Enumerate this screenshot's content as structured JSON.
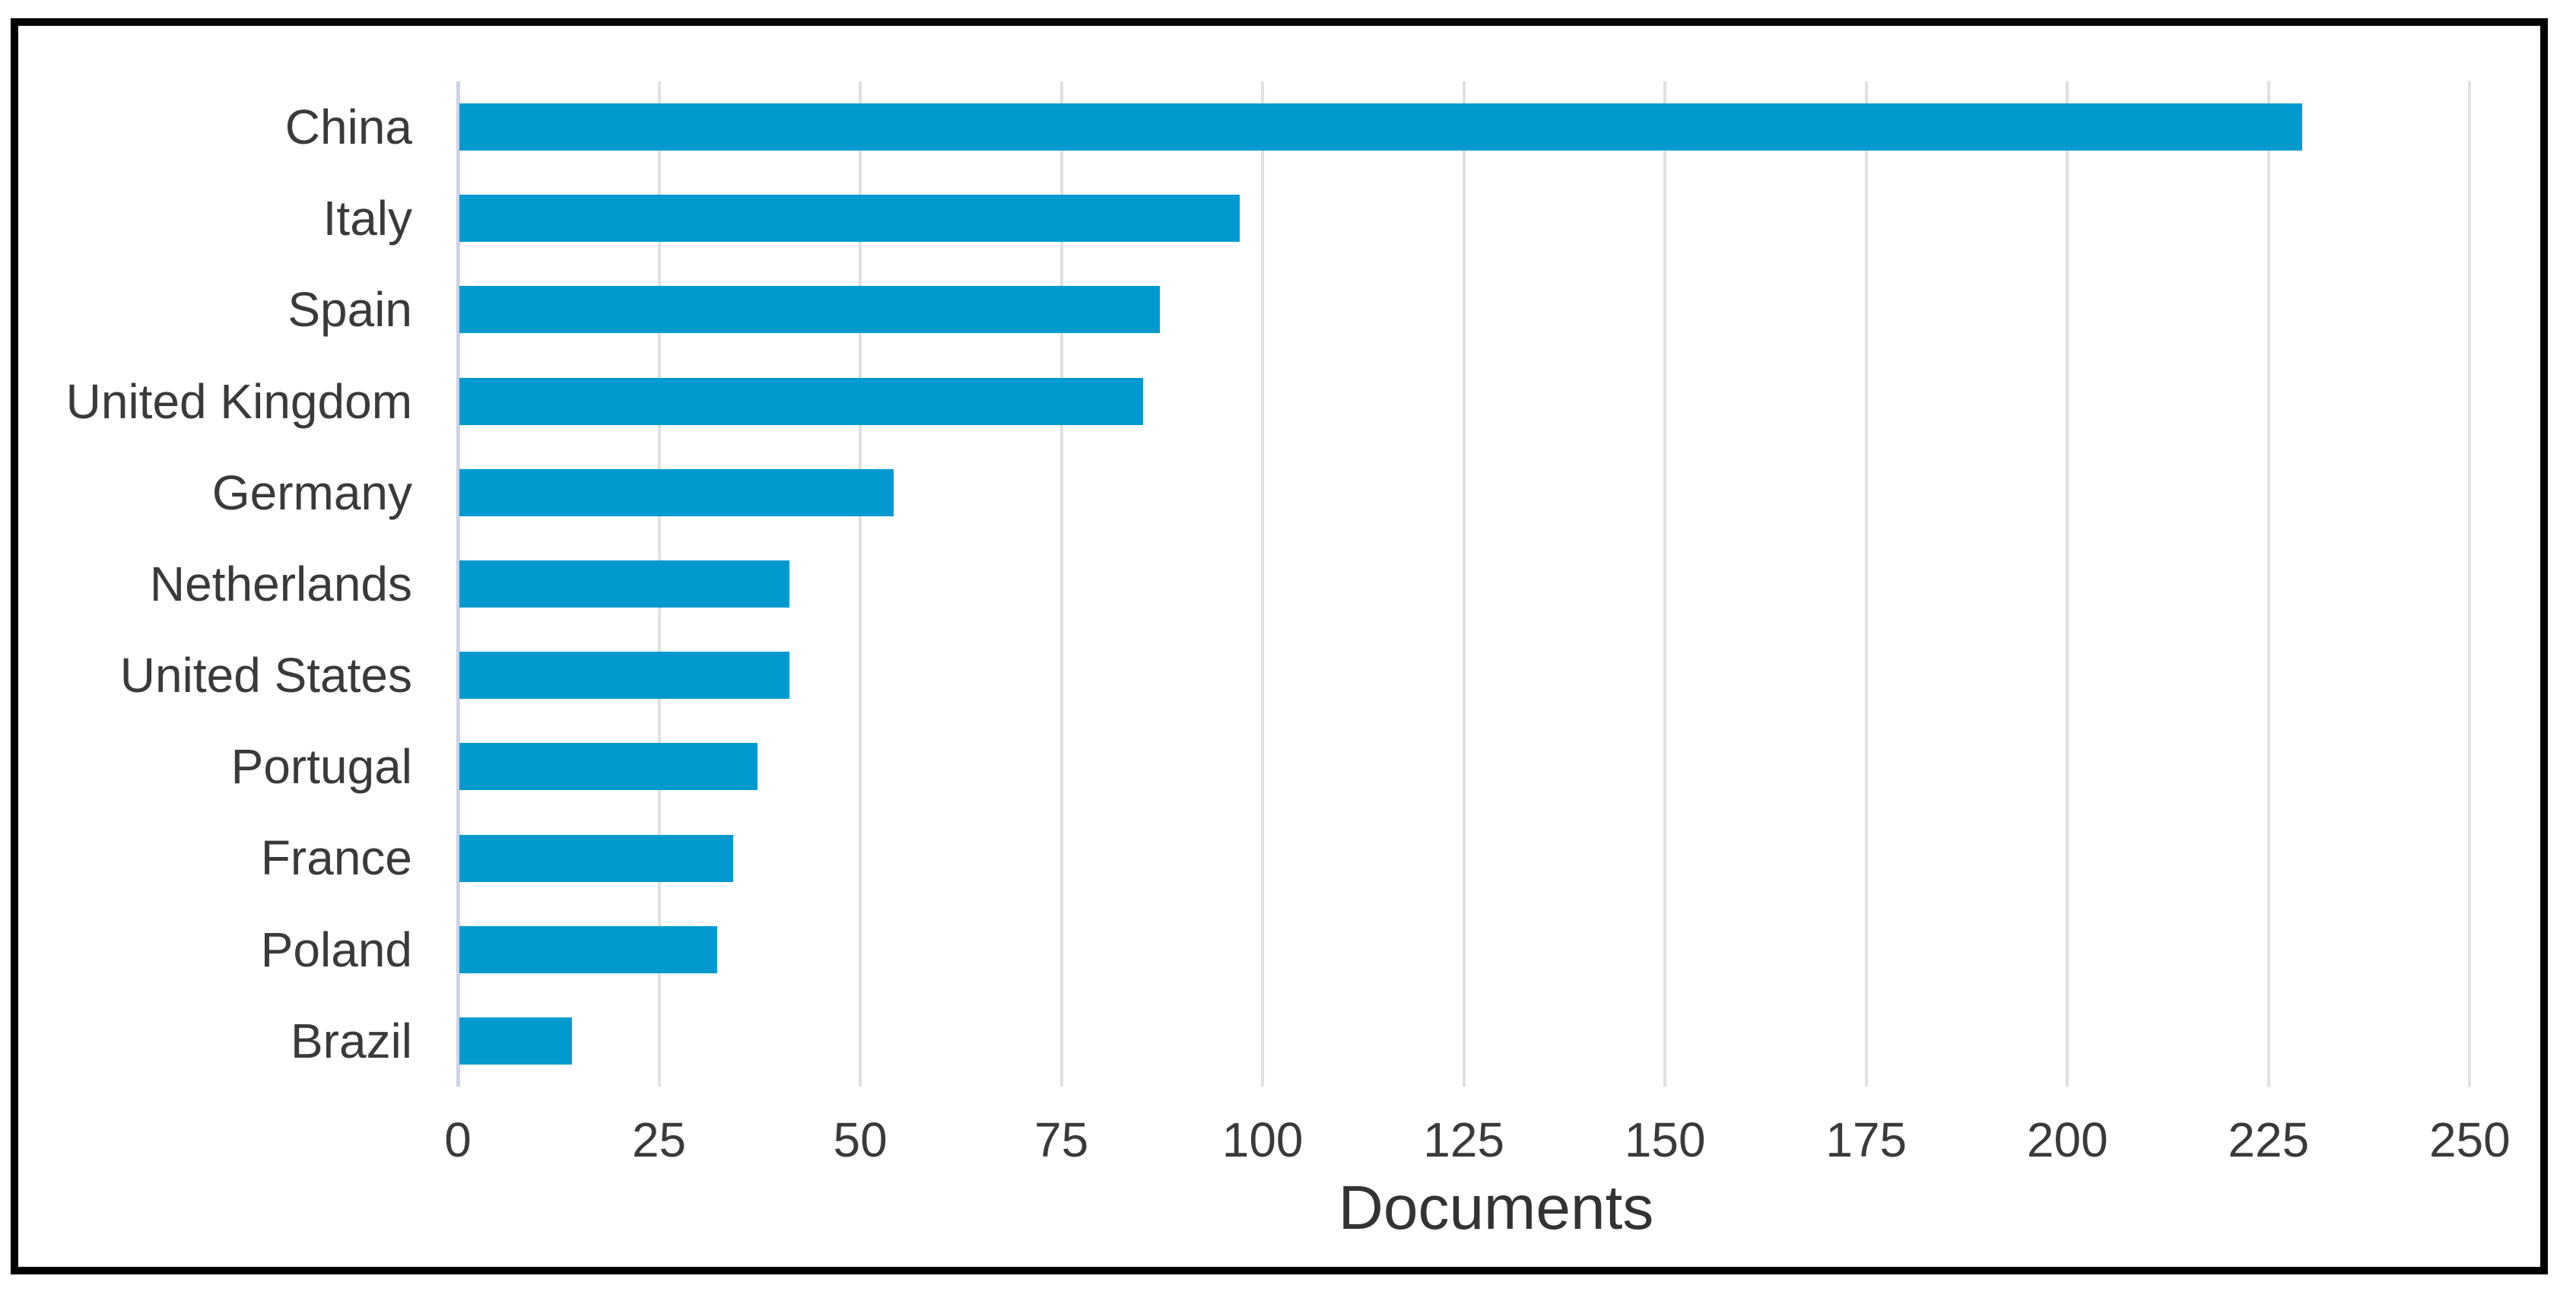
{
  "chart_data": {
    "type": "bar",
    "orientation": "horizontal",
    "title": "",
    "xlabel": "Documents",
    "ylabel": "",
    "categories": [
      "China",
      "Italy",
      "Spain",
      "United Kingdom",
      "Germany",
      "Netherlands",
      "United States",
      "Portugal",
      "France",
      "Poland",
      "Brazil"
    ],
    "values": [
      229,
      97,
      87,
      85,
      54,
      41,
      41,
      37,
      34,
      32,
      14
    ],
    "x_ticks": [
      0,
      25,
      50,
      75,
      100,
      125,
      150,
      175,
      200,
      225,
      250
    ],
    "xlim": [
      0,
      258
    ],
    "grid": true,
    "legend": "none",
    "colors": {
      "bar": "#029ace",
      "gridline": "#e1e1e1",
      "y_axis_line": "#cbd3e9",
      "text": "#3a3a3a",
      "frame_border": "#000000",
      "background": "#ffffff"
    }
  }
}
